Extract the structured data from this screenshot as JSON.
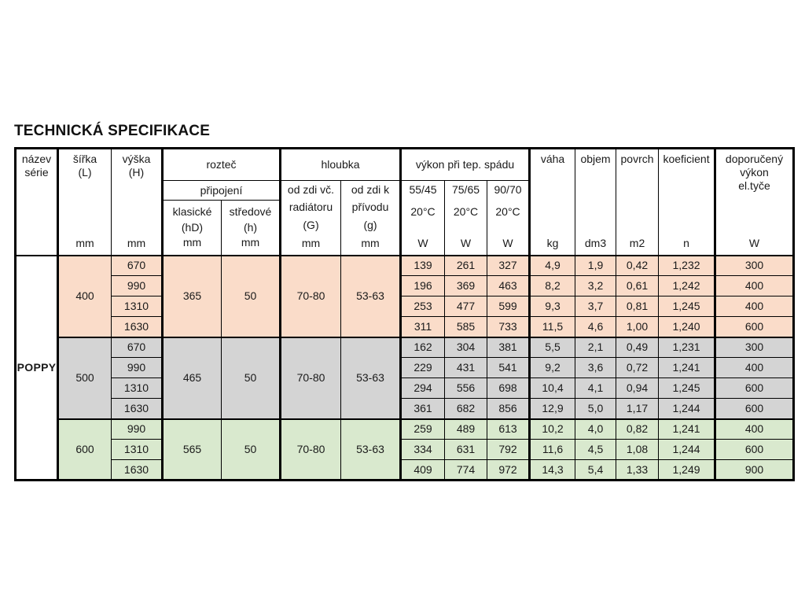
{
  "title": "TECHNICKÁ SPECIFIKACE",
  "colors": {
    "group_400_fill": "#fadcc9",
    "group_500_fill": "#d4d4d4",
    "group_600_fill": "#d9e9ce",
    "border": "#000000",
    "background": "#ffffff"
  },
  "table": {
    "header": {
      "name_series": {
        "line1": "název",
        "line2": "série"
      },
      "width": {
        "label": "šířka",
        "paren": "(L)",
        "unit": "mm"
      },
      "height": {
        "label": "výška",
        "paren": "(H)",
        "unit": "mm"
      },
      "pitch": {
        "group": "rozteč",
        "subgroup": "připojení",
        "classic": {
          "label": "klasické",
          "paren": "(hD)",
          "unit": "mm"
        },
        "central": {
          "label": "středové",
          "paren": "(h)",
          "unit": "mm"
        }
      },
      "depth": {
        "group": "hloubka",
        "from_wall_incl": {
          "line1": "od zdi vč.",
          "line2": "radiátoru",
          "paren": "(G)",
          "unit": "mm"
        },
        "from_wall_supply": {
          "line1": "od zdi k",
          "line2": "přívodu",
          "paren": "(g)",
          "unit": "mm"
        }
      },
      "power": {
        "group": "výkon při tep. spádu",
        "t5545": {
          "label": "55/45",
          "temp": "20°C",
          "unit": "W"
        },
        "t7565": {
          "label": "75/65",
          "temp": "20°C",
          "unit": "W"
        },
        "t9070": {
          "label": "90/70",
          "temp": "20°C",
          "unit": "W"
        }
      },
      "weight": {
        "label": "váha",
        "unit": "kg"
      },
      "volume": {
        "label": "objem",
        "unit": "dm3"
      },
      "surface": {
        "label": "povrch",
        "unit": "m2"
      },
      "coefficient": {
        "label": "koeficient",
        "unit": "n"
      },
      "recommended": {
        "line1": "doporučený",
        "line2": "výkon",
        "line3": "el.tyče",
        "unit": "W"
      }
    },
    "series_name": "POPPY",
    "groups": [
      {
        "width": "400",
        "pitch_classic": "365",
        "pitch_central": "50",
        "depth_wall": "70-80",
        "depth_supply": "53-63",
        "fill": "#fadcc9",
        "rows": [
          {
            "height": "670",
            "p5545": "139",
            "p7565": "261",
            "p9070": "327",
            "weight": "4,9",
            "volume": "1,9",
            "surface": "0,42",
            "coefficient": "1,232",
            "recommended": "300"
          },
          {
            "height": "990",
            "p5545": "196",
            "p7565": "369",
            "p9070": "463",
            "weight": "8,2",
            "volume": "3,2",
            "surface": "0,61",
            "coefficient": "1,242",
            "recommended": "400"
          },
          {
            "height": "1310",
            "p5545": "253",
            "p7565": "477",
            "p9070": "599",
            "weight": "9,3",
            "volume": "3,7",
            "surface": "0,81",
            "coefficient": "1,245",
            "recommended": "400"
          },
          {
            "height": "1630",
            "p5545": "311",
            "p7565": "585",
            "p9070": "733",
            "weight": "11,5",
            "volume": "4,6",
            "surface": "1,00",
            "coefficient": "1,240",
            "recommended": "600"
          }
        ]
      },
      {
        "width": "500",
        "pitch_classic": "465",
        "pitch_central": "50",
        "depth_wall": "70-80",
        "depth_supply": "53-63",
        "fill": "#d4d4d4",
        "rows": [
          {
            "height": "670",
            "p5545": "162",
            "p7565": "304",
            "p9070": "381",
            "weight": "5,5",
            "volume": "2,1",
            "surface": "0,49",
            "coefficient": "1,231",
            "recommended": "300"
          },
          {
            "height": "990",
            "p5545": "229",
            "p7565": "431",
            "p9070": "541",
            "weight": "9,2",
            "volume": "3,6",
            "surface": "0,72",
            "coefficient": "1,241",
            "recommended": "400"
          },
          {
            "height": "1310",
            "p5545": "294",
            "p7565": "556",
            "p9070": "698",
            "weight": "10,4",
            "volume": "4,1",
            "surface": "0,94",
            "coefficient": "1,245",
            "recommended": "600"
          },
          {
            "height": "1630",
            "p5545": "361",
            "p7565": "682",
            "p9070": "856",
            "weight": "12,9",
            "volume": "5,0",
            "surface": "1,17",
            "coefficient": "1,244",
            "recommended": "600"
          }
        ]
      },
      {
        "width": "600",
        "pitch_classic": "565",
        "pitch_central": "50",
        "depth_wall": "70-80",
        "depth_supply": "53-63",
        "fill": "#d9e9ce",
        "rows": [
          {
            "height": "990",
            "p5545": "259",
            "p7565": "489",
            "p9070": "613",
            "weight": "10,2",
            "volume": "4,0",
            "surface": "0,82",
            "coefficient": "1,241",
            "recommended": "400"
          },
          {
            "height": "1310",
            "p5545": "334",
            "p7565": "631",
            "p9070": "792",
            "weight": "11,6",
            "volume": "4,5",
            "surface": "1,08",
            "coefficient": "1,244",
            "recommended": "600"
          },
          {
            "height": "1630",
            "p5545": "409",
            "p7565": "774",
            "p9070": "972",
            "weight": "14,3",
            "volume": "5,4",
            "surface": "1,33",
            "coefficient": "1,249",
            "recommended": "900"
          }
        ]
      }
    ]
  }
}
